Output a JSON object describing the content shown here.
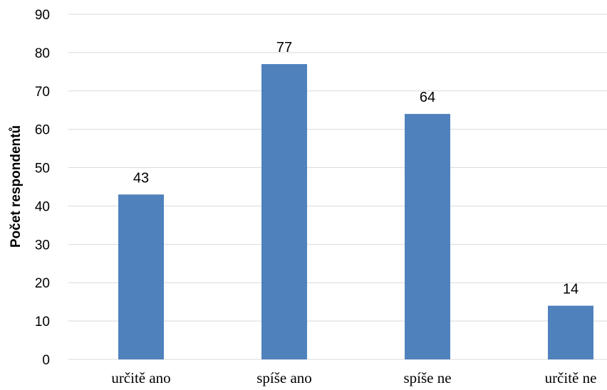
{
  "chart_data": {
    "type": "bar",
    "categories": [
      "určitě ano",
      "spíše ano",
      "spíše ne",
      "určitě ne"
    ],
    "values": [
      43,
      77,
      64,
      14
    ],
    "title": "",
    "xlabel": "",
    "ylabel": "Počet respondentů",
    "ylim": [
      0,
      90
    ],
    "yticks": [
      0,
      10,
      20,
      30,
      40,
      50,
      60,
      70,
      80,
      90
    ],
    "grid": true,
    "legend": "none",
    "data_labels": true,
    "bar_color": "#4f81bd"
  }
}
